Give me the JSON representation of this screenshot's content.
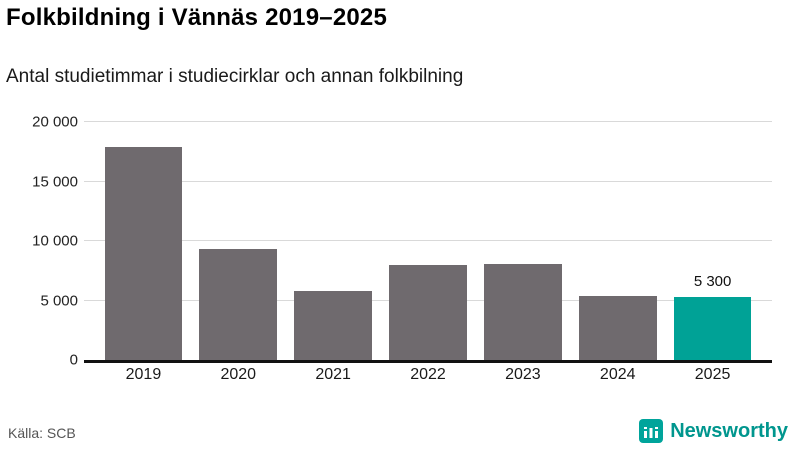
{
  "header": {
    "title": "Folkbildning i Vännäs 2019–2025",
    "subtitle": "Antal studietimmar i studiecirklar och annan folkbilning"
  },
  "footer": {
    "source": "Källa: SCB",
    "brand": "Newsworthy",
    "brand_color": "#00a49b"
  },
  "chart_data": {
    "type": "bar",
    "title": "Folkbildning i Vännäs 2019–2025",
    "subtitle": "Antal studietimmar i studiecirklar och annan folkbilning",
    "categories": [
      "2019",
      "2020",
      "2021",
      "2022",
      "2023",
      "2024",
      "2025"
    ],
    "values": [
      17900,
      9300,
      5800,
      8000,
      8100,
      5400,
      5300
    ],
    "highlight_index": 6,
    "highlight_label": "5 300",
    "ylim": [
      0,
      20000
    ],
    "yticks": [
      0,
      5000,
      10000,
      15000,
      20000
    ],
    "ytick_labels": [
      "0",
      "5 000",
      "10 000",
      "15 000",
      "20 000"
    ],
    "bar_color": "#6f6a6e",
    "highlight_color": "#00a296",
    "grid": true,
    "legend": "none",
    "source": "Källa: SCB"
  }
}
